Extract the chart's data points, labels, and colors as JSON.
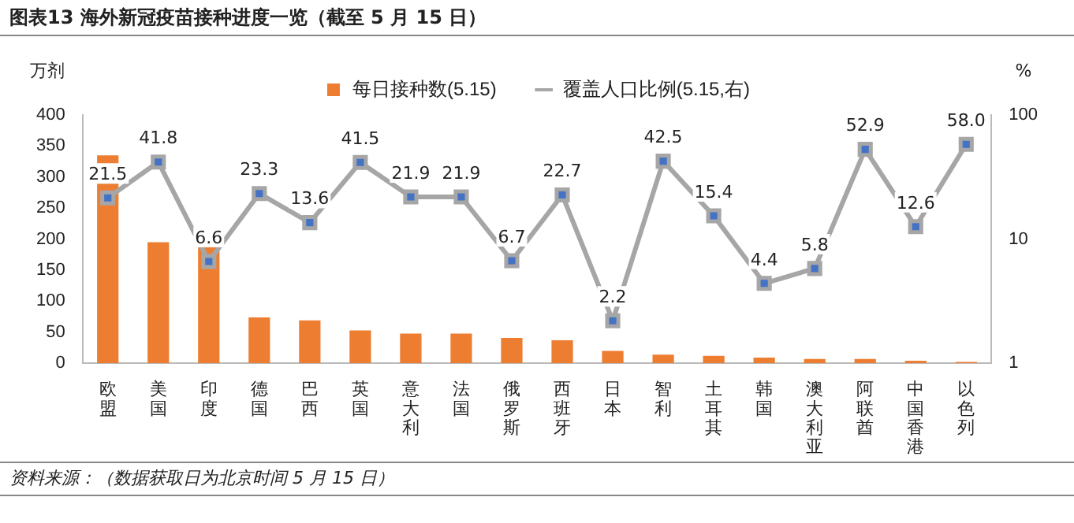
{
  "chart_data": {
    "type": "bar",
    "title": "图表13  海外新冠疫苗接种进度一览（截至 5 月 15 日）",
    "ylabel": "万剂",
    "y2label": "%",
    "categories": [
      "欧盟",
      "美国",
      "印度",
      "德国",
      "巴西",
      "英国",
      "意大利",
      "法国",
      "俄罗斯",
      "西班牙",
      "日本",
      "智利",
      "土耳其",
      "韩国",
      "澳大利亚",
      "阿联酋",
      "中国香港",
      "以色列"
    ],
    "series": [
      {
        "name": "每日接种数(5.15)",
        "color": "#ed7d31",
        "values": [
          335,
          195,
          190,
          74,
          69,
          53,
          48,
          48,
          41,
          37,
          20,
          14,
          12,
          9,
          7,
          7,
          4,
          2
        ]
      },
      {
        "name": "覆盖人口比例(5.15,右)",
        "type": "line",
        "axis": "y2",
        "color": "#a6a6a6",
        "marker": "square",
        "values": [
          21.5,
          41.8,
          6.6,
          23.3,
          13.6,
          41.5,
          21.9,
          21.9,
          6.7,
          22.7,
          2.2,
          42.5,
          15.4,
          4.4,
          5.8,
          52.9,
          12.6,
          58.0
        ],
        "value_labels": [
          "21.5",
          "41.8",
          "6.6",
          "23.3",
          "13.6",
          "41.5",
          "21.9",
          "21.9",
          "6.7",
          "22.7",
          "2.2",
          "42.5",
          "15.4",
          "4.4",
          "5.8",
          "52.9",
          "12.6",
          "58.0"
        ]
      }
    ],
    "ylim": [
      0,
      400
    ],
    "yticks": [
      0,
      50,
      100,
      150,
      200,
      250,
      300,
      350,
      400
    ],
    "y2lim": [
      1,
      100
    ],
    "y2ticks": [
      1,
      10,
      100
    ],
    "log": "y2",
    "grid": false,
    "legend": "top",
    "annotations": [
      "资料来源：（数据获取日为北京时间 5 月 15 日）"
    ]
  }
}
